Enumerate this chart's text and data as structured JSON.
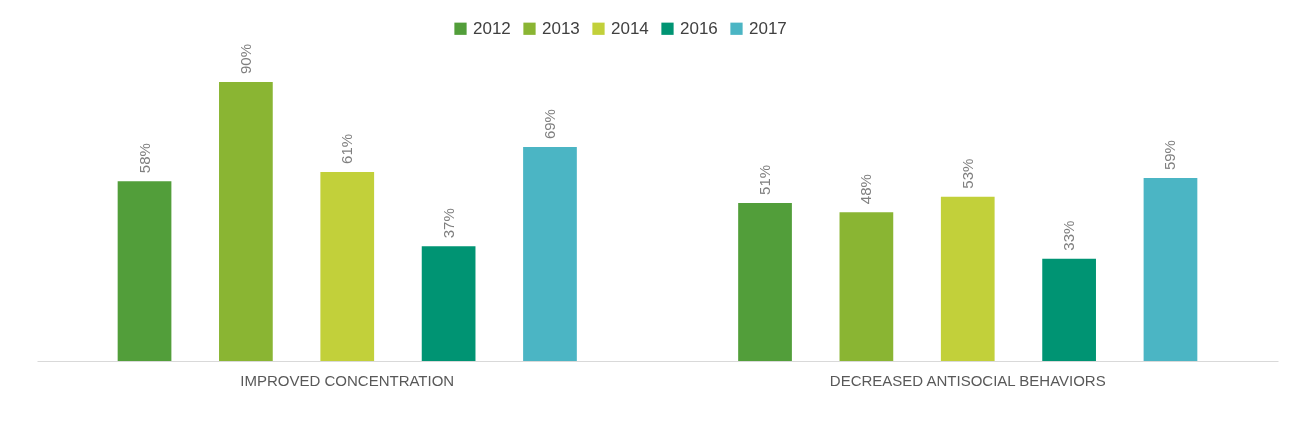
{
  "chart_data": {
    "type": "bar",
    "categories": [
      "IMPROVED CONCENTRATION",
      "DECREASED ANTISOCIAL BEHAVIORS"
    ],
    "legend": "top",
    "series": [
      {
        "name": "2012",
        "color": "#529e3a",
        "values": [
          58,
          51
        ],
        "value_labels": [
          "58%",
          "51%"
        ]
      },
      {
        "name": "2013",
        "color": "#8ab533",
        "values": [
          90,
          48
        ],
        "value_labels": [
          "90%",
          "48%"
        ]
      },
      {
        "name": "2014",
        "color": "#c2d03a",
        "values": [
          61,
          53
        ],
        "value_labels": [
          "61%",
          "53%"
        ]
      },
      {
        "name": "2016",
        "color": "#009473",
        "values": [
          37,
          33
        ],
        "value_labels": [
          "37%",
          "33%"
        ]
      },
      {
        "name": "2017",
        "color": "#4bb5c4",
        "values": [
          69,
          59
        ],
        "value_labels": [
          "69%",
          "59%"
        ]
      }
    ]
  }
}
